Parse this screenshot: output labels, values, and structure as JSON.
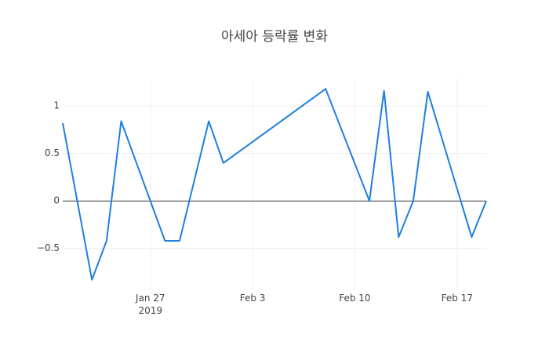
{
  "chart_data": {
    "type": "line",
    "title": "아세아 등락률 변화",
    "x": [
      "2019-01-21",
      "2019-01-23",
      "2019-01-24",
      "2019-01-25",
      "2019-01-28",
      "2019-01-29",
      "2019-01-31",
      "2019-02-01",
      "2019-02-08",
      "2019-02-11",
      "2019-02-12",
      "2019-02-13",
      "2019-02-14",
      "2019-02-15",
      "2019-02-18",
      "2019-02-19"
    ],
    "series": [
      {
        "color": "#1f7fe0",
        "values": [
          0.82,
          -0.83,
          -0.42,
          0.84,
          -0.42,
          -0.42,
          0.84,
          0.4,
          1.18,
          0,
          1.16,
          -0.38,
          0,
          1.15,
          -0.38,
          0
        ]
      }
    ],
    "xlim": [
      "2019-01-21",
      "2019-02-19"
    ],
    "xticks": [
      {
        "value": "2019-01-27",
        "label": "Jan 27\n2019"
      },
      {
        "value": "2019-02-03",
        "label": "Feb 3"
      },
      {
        "value": "2019-02-10",
        "label": "Feb 10"
      },
      {
        "value": "2019-02-17",
        "label": "Feb 17"
      }
    ],
    "ylim": [
      -0.94,
      1.29
    ],
    "yticks": [
      {
        "value": -0.5,
        "label": "−0.5"
      },
      0,
      0.5,
      1
    ],
    "grid": true,
    "zeroline": true
  }
}
